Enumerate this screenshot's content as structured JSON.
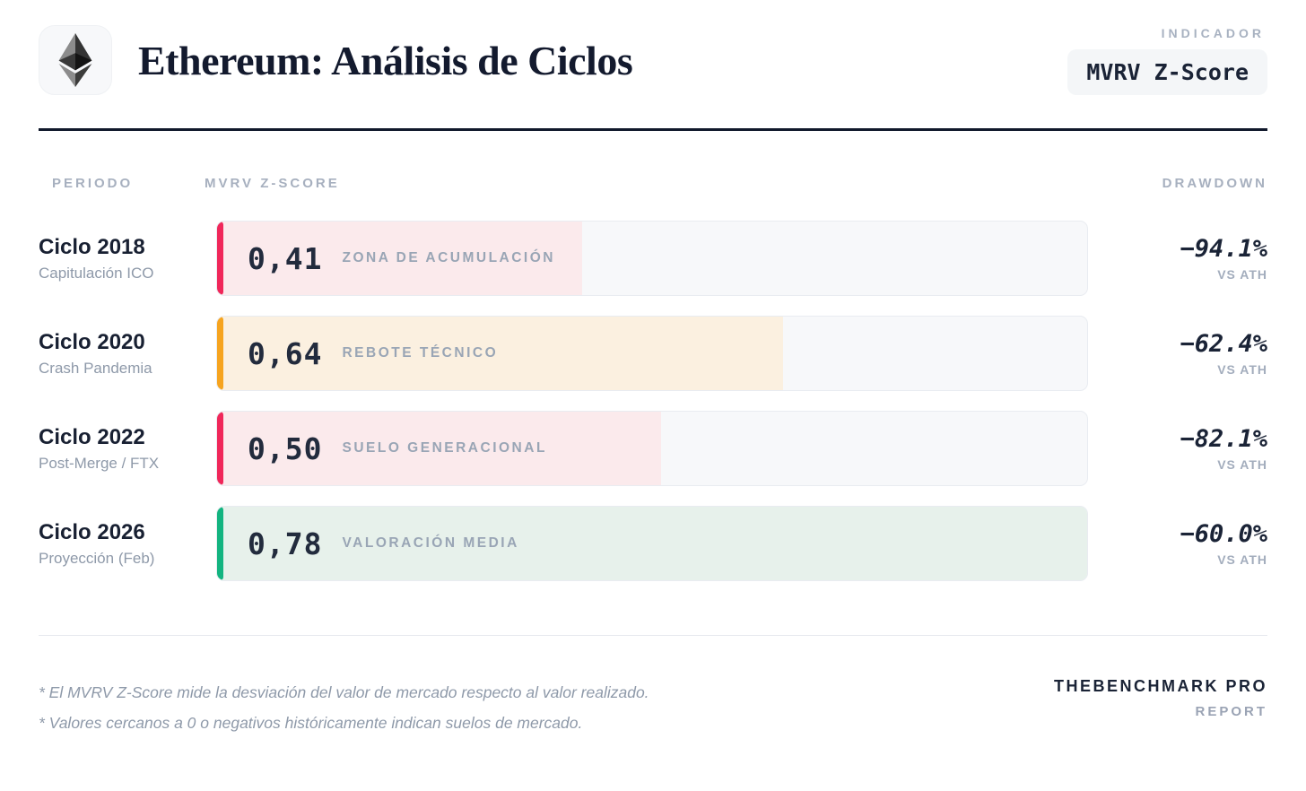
{
  "header": {
    "title": "Ethereum: Análisis de Ciclos",
    "logo_icon": "ethereum-icon",
    "indicator_label": "INDICADOR",
    "indicator_value": "MVRV Z-Score"
  },
  "columns": {
    "period": "PERIODO",
    "score": "MVRV Z-SCORE",
    "drawdown": "DRAWDOWN"
  },
  "rows": [
    {
      "title": "Ciclo 2018",
      "subtitle": "Capitulación ICO",
      "value": "0,41",
      "zone": "ZONA DE ACUMULACIÓN",
      "drawdown": "−94.1%",
      "drawdown_note": "VS ATH",
      "accent_color": "#f0275a",
      "fill_color": "#fbeaec",
      "fill_pct": 42
    },
    {
      "title": "Ciclo 2020",
      "subtitle": "Crash Pandemia",
      "value": "0,64",
      "zone": "REBOTE TÉCNICO",
      "drawdown": "−62.4%",
      "drawdown_note": "VS ATH",
      "accent_color": "#f6a41f",
      "fill_color": "#fbf0e0",
      "fill_pct": 65
    },
    {
      "title": "Ciclo 2022",
      "subtitle": "Post-Merge / FTX",
      "value": "0,50",
      "zone": "SUELO GENERACIONAL",
      "drawdown": "−82.1%",
      "drawdown_note": "VS ATH",
      "accent_color": "#f0275a",
      "fill_color": "#fbeaec",
      "fill_pct": 51
    },
    {
      "title": "Ciclo 2026",
      "subtitle": "Proyección (Feb)",
      "value": "0,78",
      "zone": "VALORACIÓN MEDIA",
      "drawdown": "−60.0%",
      "drawdown_note": "VS ATH",
      "accent_color": "#13b480",
      "fill_color": "#e7f1eb",
      "fill_pct": 100
    }
  ],
  "footnotes": [
    "* El MVRV Z-Score mide la desviación del valor de mercado respecto al valor realizado.",
    "* Valores cercanos a 0 o negativos históricamente indican suelos de mercado."
  ],
  "footer": {
    "brand": "THEBENCHMARK PRO",
    "brand_sub": "REPORT"
  },
  "chart_data": {
    "type": "bar",
    "orientation": "horizontal",
    "title": "Ethereum: Análisis de Ciclos",
    "indicator": "MVRV Z-Score",
    "categories": [
      "Ciclo 2018 (Capitulación ICO)",
      "Ciclo 2020 (Crash Pandemia)",
      "Ciclo 2022 (Post-Merge / FTX)",
      "Ciclo 2026 (Proyección Feb)"
    ],
    "series": [
      {
        "name": "MVRV Z-Score",
        "values": [
          0.41,
          0.64,
          0.5,
          0.78
        ]
      },
      {
        "name": "Drawdown vs ATH (%)",
        "values": [
          -94.1,
          -62.4,
          -82.1,
          -60.0
        ]
      }
    ],
    "annotations": [
      "ZONA DE ACUMULACIÓN",
      "REBOTE TÉCNICO",
      "SUELO GENERACIONAL",
      "VALORACIÓN MEDIA"
    ],
    "xlim": [
      0,
      1
    ],
    "grid": false,
    "legend_position": "none",
    "bar_colors": [
      "#f0275a",
      "#f6a41f",
      "#f0275a",
      "#13b480"
    ]
  }
}
